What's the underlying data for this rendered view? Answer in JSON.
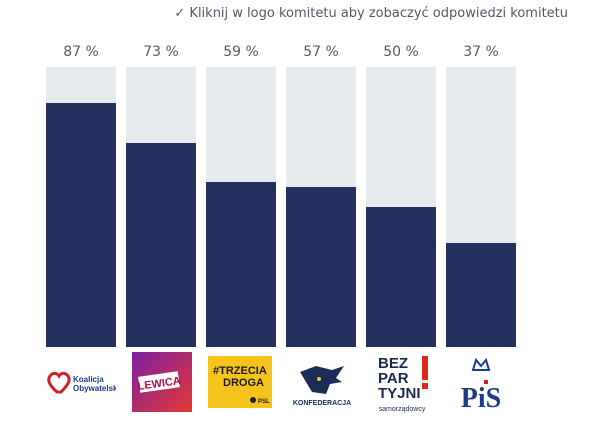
{
  "hint": "✓ Kliknij w logo komitetu aby zobaczyć odpowiedzi komitetu",
  "colors": {
    "bar": "#24305e",
    "track": "#e7eaed"
  },
  "chart_data": {
    "type": "bar",
    "categories": [
      "Koalicja Obywatelska",
      "Lewica",
      "Trzecia Droga",
      "Konfederacja",
      "Bezpartyjni Samorządowcy",
      "PiS"
    ],
    "values": [
      87,
      73,
      59,
      57,
      50,
      37
    ],
    "value_labels": [
      "87 %",
      "73 %",
      "59 %",
      "57 %",
      "50 %",
      "37 %"
    ],
    "ylim": [
      0,
      100
    ]
  },
  "logos": [
    {
      "icon": "koalicja-obywatelska-logo",
      "lines": [
        "Koalicja",
        "Obywatelska"
      ]
    },
    {
      "icon": "lewica-logo",
      "lines": [
        "LEWICA"
      ]
    },
    {
      "icon": "trzecia-droga-logo",
      "lines": [
        "#TRZECIA",
        "DROGA",
        "PSL"
      ]
    },
    {
      "icon": "konfederacja-logo",
      "lines": [
        "KONFEDERACJA"
      ]
    },
    {
      "icon": "bezpartyjni-logo",
      "lines": [
        "BEZ",
        "PAR",
        "TYJNI",
        "samorządowcy"
      ]
    },
    {
      "icon": "pis-logo",
      "lines": [
        "PiS"
      ]
    }
  ]
}
